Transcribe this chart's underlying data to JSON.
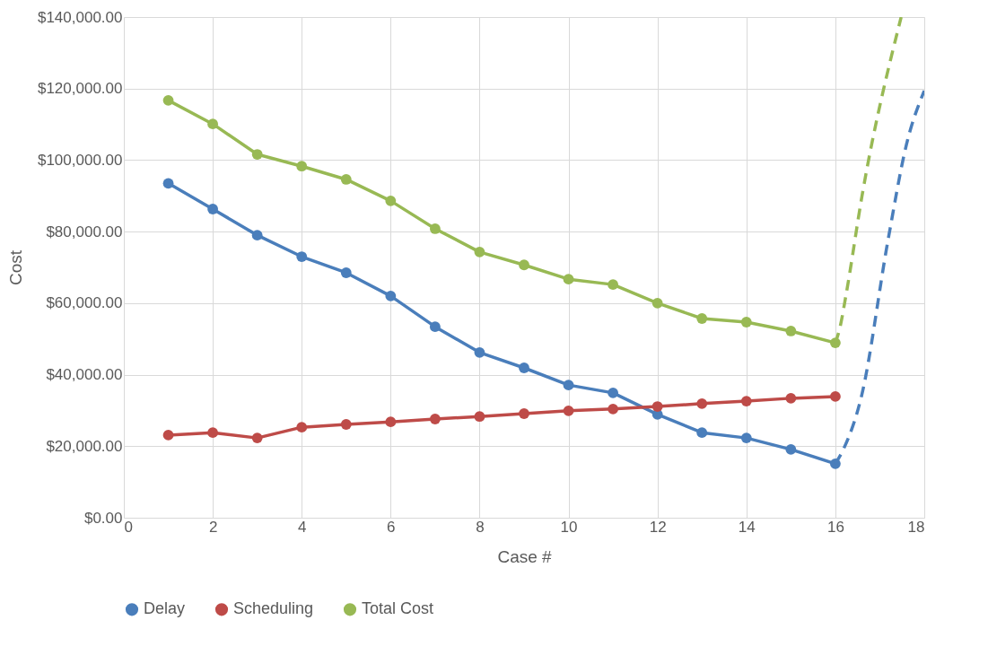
{
  "chart_data": {
    "type": "line",
    "xlabel": "Case #",
    "ylabel": "Cost",
    "x": [
      1,
      2,
      3,
      4,
      5,
      6,
      7,
      8,
      9,
      10,
      11,
      12,
      13,
      14,
      15,
      16
    ],
    "series": [
      {
        "name": "Delay",
        "color": "#4a7ebb",
        "values": [
          93500,
          86300,
          79000,
          73000,
          68500,
          62000,
          53400,
          46200,
          41900,
          37100,
          34900,
          28900,
          23800,
          22300,
          19100,
          15100
        ]
      },
      {
        "name": "Scheduling",
        "color": "#be4b48",
        "values": [
          23100,
          23800,
          22300,
          25300,
          26100,
          26800,
          27600,
          28300,
          29100,
          29900,
          30400,
          31100,
          31900,
          32600,
          33400,
          33900
        ]
      },
      {
        "name": "Total Cost",
        "color": "#98b954",
        "values": [
          116700,
          110100,
          101600,
          98300,
          94600,
          88600,
          80800,
          74300,
          70700,
          66700,
          65200,
          60000,
          55700,
          54700,
          52200,
          48900
        ]
      },
      {
        "type": "line",
        "color": "#98b954",
        "marker": "none",
        "line_style": "dashed",
        "x": [
          16,
          16.1,
          16.25,
          16.6,
          17.48
        ],
        "values": [
          48900,
          53000,
          63000,
          90000,
          140000
        ]
      },
      {
        "type": "line",
        "color": "#4a7ebb",
        "marker": "none",
        "line_style": "dashed",
        "x": [
          16,
          16.18,
          16.59,
          17.19,
          17.6,
          18
        ],
        "values": [
          15100,
          19100,
          34100,
          78000,
          104400,
          119400
        ]
      }
    ],
    "xlim": [
      0,
      18
    ],
    "xticks": [
      0,
      2,
      4,
      6,
      8,
      10,
      12,
      14,
      16,
      18
    ],
    "ylim": [
      0,
      140000
    ],
    "yticks": [
      {
        "value": 0,
        "label": "$0.00"
      },
      {
        "value": 20000,
        "label": "$20,000.00"
      },
      {
        "value": 40000,
        "label": "$40,000.00"
      },
      {
        "value": 60000,
        "label": "$60,000.00"
      },
      {
        "value": 80000,
        "label": "$80,000.00"
      },
      {
        "value": 100000,
        "label": "$100,000.00"
      },
      {
        "value": 120000,
        "label": "$120,000.00"
      },
      {
        "value": 140000,
        "label": "$140,000.00"
      }
    ],
    "grid": true,
    "legend": "bottom",
    "marker": "circle",
    "line_style": "solid"
  }
}
